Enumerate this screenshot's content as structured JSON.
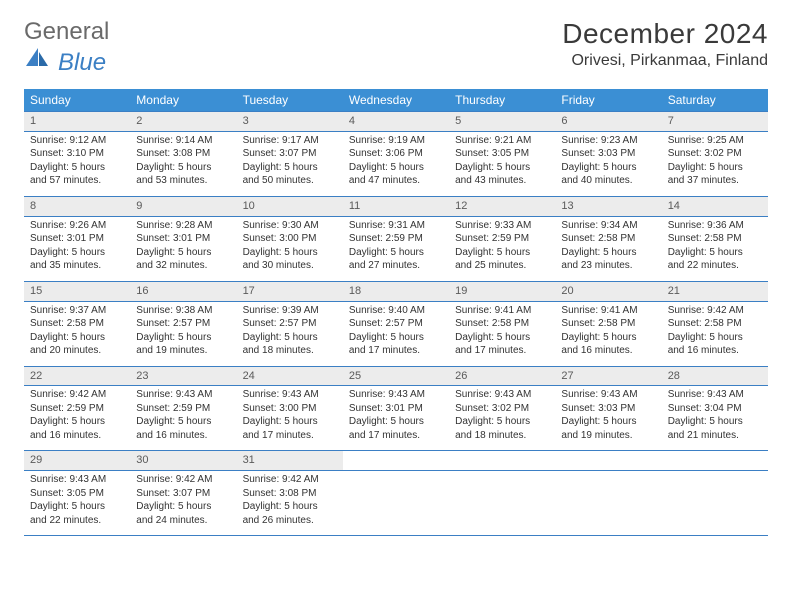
{
  "logo": {
    "general": "General",
    "blue": "Blue",
    "icon_color": "#3b7fc4"
  },
  "title": "December 2024",
  "location": "Orivesi, Pirkanmaa, Finland",
  "header_bg": "#3b8fd4",
  "header_fg": "#ffffff",
  "daynum_bg": "#ececec",
  "rule_color": "#3b7fc4",
  "weekdays": [
    "Sunday",
    "Monday",
    "Tuesday",
    "Wednesday",
    "Thursday",
    "Friday",
    "Saturday"
  ],
  "weeks": [
    [
      {
        "n": "1",
        "sr": "Sunrise: 9:12 AM",
        "ss": "Sunset: 3:10 PM",
        "d1": "Daylight: 5 hours",
        "d2": "and 57 minutes."
      },
      {
        "n": "2",
        "sr": "Sunrise: 9:14 AM",
        "ss": "Sunset: 3:08 PM",
        "d1": "Daylight: 5 hours",
        "d2": "and 53 minutes."
      },
      {
        "n": "3",
        "sr": "Sunrise: 9:17 AM",
        "ss": "Sunset: 3:07 PM",
        "d1": "Daylight: 5 hours",
        "d2": "and 50 minutes."
      },
      {
        "n": "4",
        "sr": "Sunrise: 9:19 AM",
        "ss": "Sunset: 3:06 PM",
        "d1": "Daylight: 5 hours",
        "d2": "and 47 minutes."
      },
      {
        "n": "5",
        "sr": "Sunrise: 9:21 AM",
        "ss": "Sunset: 3:05 PM",
        "d1": "Daylight: 5 hours",
        "d2": "and 43 minutes."
      },
      {
        "n": "6",
        "sr": "Sunrise: 9:23 AM",
        "ss": "Sunset: 3:03 PM",
        "d1": "Daylight: 5 hours",
        "d2": "and 40 minutes."
      },
      {
        "n": "7",
        "sr": "Sunrise: 9:25 AM",
        "ss": "Sunset: 3:02 PM",
        "d1": "Daylight: 5 hours",
        "d2": "and 37 minutes."
      }
    ],
    [
      {
        "n": "8",
        "sr": "Sunrise: 9:26 AM",
        "ss": "Sunset: 3:01 PM",
        "d1": "Daylight: 5 hours",
        "d2": "and 35 minutes."
      },
      {
        "n": "9",
        "sr": "Sunrise: 9:28 AM",
        "ss": "Sunset: 3:01 PM",
        "d1": "Daylight: 5 hours",
        "d2": "and 32 minutes."
      },
      {
        "n": "10",
        "sr": "Sunrise: 9:30 AM",
        "ss": "Sunset: 3:00 PM",
        "d1": "Daylight: 5 hours",
        "d2": "and 30 minutes."
      },
      {
        "n": "11",
        "sr": "Sunrise: 9:31 AM",
        "ss": "Sunset: 2:59 PM",
        "d1": "Daylight: 5 hours",
        "d2": "and 27 minutes."
      },
      {
        "n": "12",
        "sr": "Sunrise: 9:33 AM",
        "ss": "Sunset: 2:59 PM",
        "d1": "Daylight: 5 hours",
        "d2": "and 25 minutes."
      },
      {
        "n": "13",
        "sr": "Sunrise: 9:34 AM",
        "ss": "Sunset: 2:58 PM",
        "d1": "Daylight: 5 hours",
        "d2": "and 23 minutes."
      },
      {
        "n": "14",
        "sr": "Sunrise: 9:36 AM",
        "ss": "Sunset: 2:58 PM",
        "d1": "Daylight: 5 hours",
        "d2": "and 22 minutes."
      }
    ],
    [
      {
        "n": "15",
        "sr": "Sunrise: 9:37 AM",
        "ss": "Sunset: 2:58 PM",
        "d1": "Daylight: 5 hours",
        "d2": "and 20 minutes."
      },
      {
        "n": "16",
        "sr": "Sunrise: 9:38 AM",
        "ss": "Sunset: 2:57 PM",
        "d1": "Daylight: 5 hours",
        "d2": "and 19 minutes."
      },
      {
        "n": "17",
        "sr": "Sunrise: 9:39 AM",
        "ss": "Sunset: 2:57 PM",
        "d1": "Daylight: 5 hours",
        "d2": "and 18 minutes."
      },
      {
        "n": "18",
        "sr": "Sunrise: 9:40 AM",
        "ss": "Sunset: 2:57 PM",
        "d1": "Daylight: 5 hours",
        "d2": "and 17 minutes."
      },
      {
        "n": "19",
        "sr": "Sunrise: 9:41 AM",
        "ss": "Sunset: 2:58 PM",
        "d1": "Daylight: 5 hours",
        "d2": "and 17 minutes."
      },
      {
        "n": "20",
        "sr": "Sunrise: 9:41 AM",
        "ss": "Sunset: 2:58 PM",
        "d1": "Daylight: 5 hours",
        "d2": "and 16 minutes."
      },
      {
        "n": "21",
        "sr": "Sunrise: 9:42 AM",
        "ss": "Sunset: 2:58 PM",
        "d1": "Daylight: 5 hours",
        "d2": "and 16 minutes."
      }
    ],
    [
      {
        "n": "22",
        "sr": "Sunrise: 9:42 AM",
        "ss": "Sunset: 2:59 PM",
        "d1": "Daylight: 5 hours",
        "d2": "and 16 minutes."
      },
      {
        "n": "23",
        "sr": "Sunrise: 9:43 AM",
        "ss": "Sunset: 2:59 PM",
        "d1": "Daylight: 5 hours",
        "d2": "and 16 minutes."
      },
      {
        "n": "24",
        "sr": "Sunrise: 9:43 AM",
        "ss": "Sunset: 3:00 PM",
        "d1": "Daylight: 5 hours",
        "d2": "and 17 minutes."
      },
      {
        "n": "25",
        "sr": "Sunrise: 9:43 AM",
        "ss": "Sunset: 3:01 PM",
        "d1": "Daylight: 5 hours",
        "d2": "and 17 minutes."
      },
      {
        "n": "26",
        "sr": "Sunrise: 9:43 AM",
        "ss": "Sunset: 3:02 PM",
        "d1": "Daylight: 5 hours",
        "d2": "and 18 minutes."
      },
      {
        "n": "27",
        "sr": "Sunrise: 9:43 AM",
        "ss": "Sunset: 3:03 PM",
        "d1": "Daylight: 5 hours",
        "d2": "and 19 minutes."
      },
      {
        "n": "28",
        "sr": "Sunrise: 9:43 AM",
        "ss": "Sunset: 3:04 PM",
        "d1": "Daylight: 5 hours",
        "d2": "and 21 minutes."
      }
    ],
    [
      {
        "n": "29",
        "sr": "Sunrise: 9:43 AM",
        "ss": "Sunset: 3:05 PM",
        "d1": "Daylight: 5 hours",
        "d2": "and 22 minutes."
      },
      {
        "n": "30",
        "sr": "Sunrise: 9:42 AM",
        "ss": "Sunset: 3:07 PM",
        "d1": "Daylight: 5 hours",
        "d2": "and 24 minutes."
      },
      {
        "n": "31",
        "sr": "Sunrise: 9:42 AM",
        "ss": "Sunset: 3:08 PM",
        "d1": "Daylight: 5 hours",
        "d2": "and 26 minutes."
      },
      null,
      null,
      null,
      null
    ]
  ]
}
